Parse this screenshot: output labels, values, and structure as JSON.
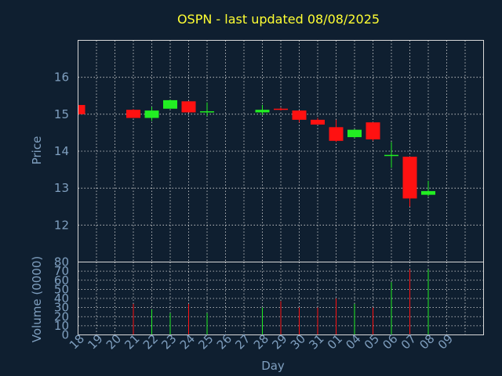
{
  "chart_data": {
    "type": "candlestick",
    "title": "OSPN - last updated 08/08/2025",
    "xlabel": "Day",
    "ylabel_price": "Price",
    "ylabel_volume": "Volume (0000)",
    "x_ticks": [
      "18",
      "19",
      "20",
      "21",
      "22",
      "23",
      "24",
      "25",
      "26",
      "27",
      "28",
      "29",
      "30",
      "31",
      "01",
      "04",
      "05",
      "06",
      "07",
      "08",
      "09"
    ],
    "price_ylim": [
      11,
      17
    ],
    "price_yticks": [
      12,
      13,
      14,
      15,
      16
    ],
    "volume_ylim": [
      0,
      80
    ],
    "volume_yticks": [
      0,
      10,
      20,
      30,
      40,
      50,
      60,
      70,
      80
    ],
    "colors": {
      "up": "#22ee22",
      "down": "#ff1111",
      "background": "#0f1f30",
      "grid": "#d8d8d8"
    },
    "candles": [
      {
        "x": 0.0,
        "open": 15.25,
        "high": 15.25,
        "low": 15.0,
        "close": 15.0,
        "volume": 0
      },
      {
        "x": 3.0,
        "open": 15.12,
        "high": 15.14,
        "low": 14.9,
        "close": 14.9,
        "volume": 34
      },
      {
        "x": 4.0,
        "open": 14.9,
        "high": 15.2,
        "low": 14.82,
        "close": 15.1,
        "volume": 28
      },
      {
        "x": 5.0,
        "open": 15.15,
        "high": 15.4,
        "low": 15.15,
        "close": 15.38,
        "volume": 24
      },
      {
        "x": 6.0,
        "open": 15.35,
        "high": 15.35,
        "low": 15.05,
        "close": 15.05,
        "volume": 34
      },
      {
        "x": 7.0,
        "open": 15.05,
        "high": 15.32,
        "low": 14.95,
        "close": 15.08,
        "volume": 24
      },
      {
        "x": 10.0,
        "open": 15.05,
        "high": 15.25,
        "low": 14.98,
        "close": 15.12,
        "volume": 30
      },
      {
        "x": 11.0,
        "open": 15.15,
        "high": 15.18,
        "low": 15.1,
        "close": 15.12,
        "volume": 37
      },
      {
        "x": 12.0,
        "open": 15.1,
        "high": 15.1,
        "low": 14.78,
        "close": 14.85,
        "volume": 30
      },
      {
        "x": 13.0,
        "open": 14.85,
        "high": 14.9,
        "low": 14.72,
        "close": 14.72,
        "volume": 30
      },
      {
        "x": 14.0,
        "open": 14.65,
        "high": 14.85,
        "low": 14.25,
        "close": 14.28,
        "volume": 40
      },
      {
        "x": 15.0,
        "open": 14.38,
        "high": 14.6,
        "low": 14.35,
        "close": 14.58,
        "volume": 34
      },
      {
        "x": 16.0,
        "open": 14.78,
        "high": 14.78,
        "low": 14.28,
        "close": 14.32,
        "volume": 30
      },
      {
        "x": 17.0,
        "open": 13.9,
        "high": 14.25,
        "low": 13.55,
        "close": 13.9,
        "volume": 58
      },
      {
        "x": 18.0,
        "open": 13.85,
        "high": 13.85,
        "low": 12.5,
        "close": 12.72,
        "volume": 72
      },
      {
        "x": 19.0,
        "open": 12.82,
        "high": 13.2,
        "low": 12.78,
        "close": 12.92,
        "volume": 72
      }
    ]
  }
}
